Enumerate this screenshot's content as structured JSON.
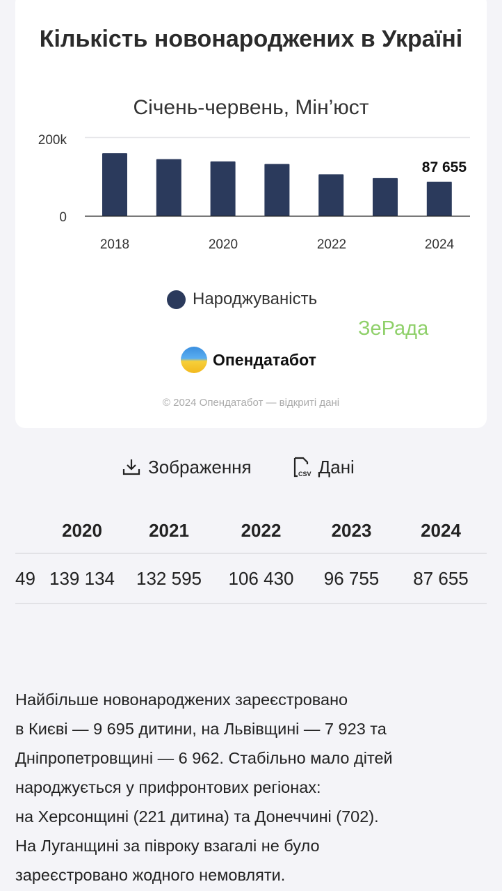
{
  "chart_data": {
    "type": "bar",
    "title": "Кількість новонароджених в Україні",
    "subtitle": "Січень-червень, Мін’юст",
    "categories": [
      "2018",
      "2019",
      "2020",
      "2021",
      "2022",
      "2023",
      "2024"
    ],
    "values": [
      160000,
      145000,
      139134,
      132595,
      106430,
      96755,
      87655
    ],
    "x_tick_labels": [
      "2018",
      "2020",
      "2022",
      "2024"
    ],
    "y_tick_labels": [
      "0",
      "200k"
    ],
    "ylim": [
      0,
      200000
    ],
    "data_label": "87 655",
    "legend": [
      "Народжуваність"
    ],
    "legend_placement": "bottom",
    "bar_color": "#2b3a5c",
    "grid": true
  },
  "watermark": "ЗеРада",
  "brand": "Опендатабот",
  "copyright": "© 2024 Опендатабот — відкриті дані",
  "actions": {
    "image": "Зображення",
    "data": "Дані"
  },
  "table": {
    "headers": [
      "",
      "2020",
      "2021",
      "2022",
      "2023",
      "2024"
    ],
    "row": [
      "49",
      "139 134",
      "132 595",
      "106 430",
      "96 755",
      "87 655"
    ]
  },
  "paragraph": [
    "Найбільше новонароджених зареєстровано",
    "в Києві — 9 695 дитини, на Львівщині — 7 923 та",
    "Дніпропетровщині — 6 962. Стабільно мало дітей",
    "народжується у прифронтових регіонах:",
    "на Херсонщині (221 дитина) та Донеччині (702).",
    "На Луганщині за півроку взагалі не було",
    "зареєстровано жодного немовляти."
  ]
}
